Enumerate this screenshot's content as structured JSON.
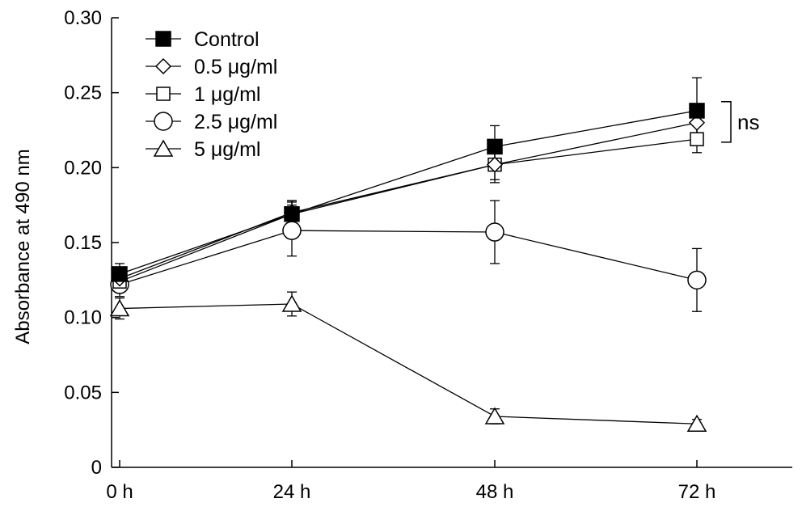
{
  "chart_data": {
    "type": "line",
    "title": "",
    "xlabel": "",
    "ylabel": "Absorbance at 490 nm",
    "categories": [
      "0 h",
      "24 h",
      "48 h",
      "72 h"
    ],
    "ylim": [
      0,
      0.3
    ],
    "y_ticks": [
      "0",
      "0.05",
      "0.10",
      "0.15",
      "0.20",
      "0.25",
      "0.30"
    ],
    "y_tick_values": [
      0,
      0.05,
      0.1,
      0.15,
      0.2,
      0.25,
      0.3
    ],
    "grid": false,
    "legend_position": "top-left",
    "series": [
      {
        "name": "Control",
        "marker": "square-filled",
        "values": [
          0.129,
          0.169,
          0.214,
          0.238
        ],
        "errors": [
          0.007,
          0.009,
          0.014,
          0.022
        ]
      },
      {
        "name": "0.5 μg/ml",
        "marker": "diamond-open",
        "values": [
          0.126,
          0.17,
          0.202,
          0.23
        ],
        "errors": [
          0.006,
          0.008,
          0.01,
          0.01
        ]
      },
      {
        "name": "1 μg/ml",
        "marker": "square-open",
        "values": [
          0.124,
          0.169,
          0.202,
          0.219
        ],
        "errors": [
          0.006,
          0.008,
          0.012,
          0.009
        ]
      },
      {
        "name": "2.5 μg/ml",
        "marker": "circle-open",
        "values": [
          0.122,
          0.158,
          0.157,
          0.125
        ],
        "errors": [
          0.008,
          0.017,
          0.021,
          0.021
        ]
      },
      {
        "name": "5 μg/ml",
        "marker": "triangle-open",
        "values": [
          0.106,
          0.109,
          0.034,
          0.029
        ],
        "errors": [
          0.007,
          0.008,
          0.005,
          0.003
        ]
      }
    ],
    "annotation": {
      "text": "ns",
      "spans": [
        "Control",
        "0.5 μg/ml",
        "1 μg/ml"
      ],
      "at": "72 h"
    }
  }
}
